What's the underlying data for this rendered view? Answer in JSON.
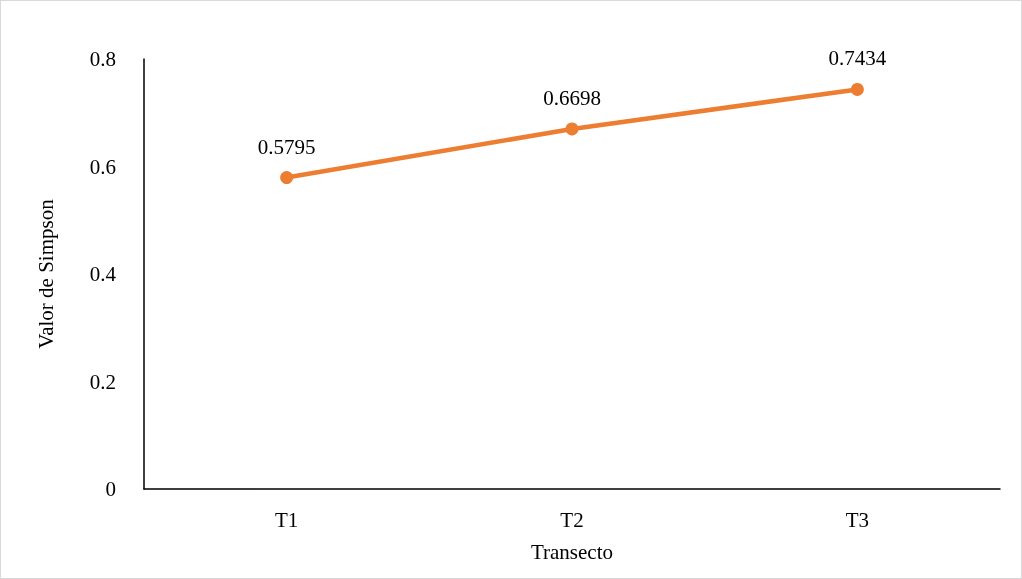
{
  "chart_data": {
    "type": "line",
    "xlabel": "Transecto",
    "ylabel": "Valor de Simpson",
    "categories": [
      "T1",
      "T2",
      "T3"
    ],
    "series": [
      {
        "color": "#ed7d31",
        "values": [
          0.5795,
          0.6698,
          0.7434
        ]
      }
    ],
    "ylim": [
      0,
      0.8
    ],
    "yticks": [
      0,
      0.2,
      0.4,
      0.6,
      0.8
    ],
    "grid": false,
    "marker": "circle",
    "line_style": "solid",
    "data_labels": true
  }
}
